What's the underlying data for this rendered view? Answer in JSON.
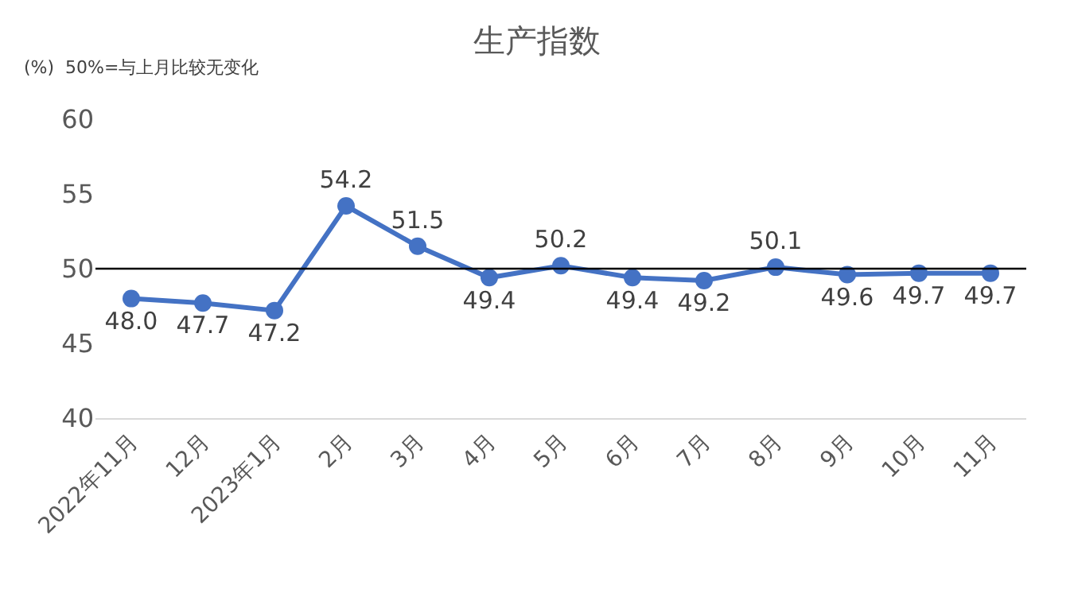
{
  "chart_data": {
    "type": "line",
    "title": "生产指数",
    "annotations": [
      "(%)  50%=与上月比较无变化"
    ],
    "categories": [
      "2022年11月",
      "12月",
      "2023年1月",
      "2月",
      "3月",
      "4月",
      "5月",
      "6月",
      "7月",
      "8月",
      "9月",
      "10月",
      "11月"
    ],
    "series": [
      {
        "color": "#4472c4",
        "values": [
          48.0,
          47.7,
          47.2,
          54.2,
          51.5,
          49.4,
          50.2,
          49.4,
          49.2,
          50.1,
          49.6,
          49.7,
          49.7
        ],
        "value_labels": [
          "48.0",
          "47.7",
          "47.2",
          "54.2",
          "51.5",
          "49.4",
          "50.2",
          "49.4",
          "49.2",
          "50.1",
          "49.6",
          "49.7",
          "49.7"
        ]
      }
    ],
    "ylim": [
      40,
      60
    ],
    "yticks": [
      40,
      45,
      50,
      55,
      60
    ],
    "ref_lines": [
      {
        "axis": "y",
        "value": 50,
        "color": "#000000",
        "line_style": "solid"
      }
    ],
    "marker": "circle",
    "line_style": "solid",
    "grid": false,
    "legend": false
  }
}
